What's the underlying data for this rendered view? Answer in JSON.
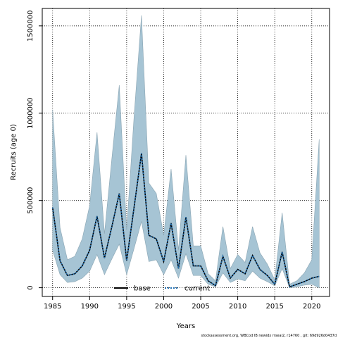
{
  "chart_data": {
    "type": "line",
    "title": "",
    "xlabel": "Years",
    "ylabel": "Recruits (age 0)",
    "xlim": [
      1983.6,
      2022.4
    ],
    "ylim": [
      -50000,
      1600000
    ],
    "x_ticks": [
      1985,
      1990,
      1995,
      2000,
      2005,
      2010,
      2015,
      2020
    ],
    "y_ticks": [
      0,
      500000,
      1000000,
      1500000
    ],
    "x_tick_labels": [
      "1985",
      "1990",
      "1995",
      "2000",
      "2005",
      "2010",
      "2015",
      "2020"
    ],
    "y_tick_labels": [
      "0",
      "500000",
      "1000000",
      "1500000"
    ],
    "grid": true,
    "legend_position": "bottom-center",
    "x": [
      1985,
      1986,
      1987,
      1988,
      1989,
      1990,
      1991,
      1992,
      1993,
      1994,
      1995,
      1996,
      1997,
      1998,
      1999,
      2000,
      2001,
      2002,
      2003,
      2004,
      2005,
      2006,
      2007,
      2008,
      2009,
      2010,
      2011,
      2012,
      2013,
      2014,
      2015,
      2016,
      2017,
      2018,
      2019,
      2020,
      2021
    ],
    "band": {
      "upper": [
        1020000,
        345000,
        160000,
        180000,
        280000,
        470000,
        890000,
        310000,
        740000,
        1160000,
        330000,
        980000,
        1560000,
        600000,
        540000,
        300000,
        680000,
        215000,
        760000,
        240000,
        240000,
        80000,
        40000,
        350000,
        110000,
        190000,
        145000,
        350000,
        200000,
        135000,
        45000,
        430000,
        20000,
        40000,
        85000,
        160000,
        850000
      ],
      "lower": [
        215000,
        75000,
        30000,
        35000,
        55000,
        95000,
        190000,
        75000,
        165000,
        250000,
        75000,
        225000,
        380000,
        150000,
        160000,
        75000,
        160000,
        55000,
        195000,
        70000,
        70000,
        20000,
        5000,
        85000,
        30000,
        50000,
        40000,
        95000,
        55000,
        35000,
        10000,
        110000,
        0,
        5000,
        15000,
        20000,
        0
      ]
    },
    "series": [
      {
        "name": "base",
        "values": [
          460000,
          155000,
          70000,
          80000,
          125000,
          215000,
          410000,
          170000,
          350000,
          540000,
          155000,
          460000,
          770000,
          300000,
          280000,
          150000,
          370000,
          110000,
          405000,
          125000,
          125000,
          40000,
          12000,
          180000,
          55000,
          105000,
          80000,
          185000,
          105000,
          70000,
          20000,
          205000,
          5000,
          20000,
          35000,
          55000,
          65000
        ]
      },
      {
        "name": "current",
        "values": [
          460000,
          155000,
          70000,
          80000,
          125000,
          215000,
          410000,
          170000,
          350000,
          540000,
          155000,
          460000,
          770000,
          300000,
          280000,
          150000,
          370000,
          110000,
          405000,
          125000,
          125000,
          40000,
          12000,
          180000,
          55000,
          105000,
          80000,
          185000,
          105000,
          70000,
          20000,
          205000,
          5000,
          20000,
          35000,
          55000,
          65000
        ]
      }
    ],
    "colors": {
      "band_fill": "#a6c4d4",
      "band_stroke": "#8aa5b3",
      "base": "#000000",
      "current": "#1f6fb2",
      "grid": "#000000"
    },
    "legend": {
      "base_label": "base",
      "current_label": "current"
    },
    "footnote": "stockassessment.org,  WBCod  IB  newidx  rrseal2,  r14760 ,  git:  69d926d0437d"
  }
}
